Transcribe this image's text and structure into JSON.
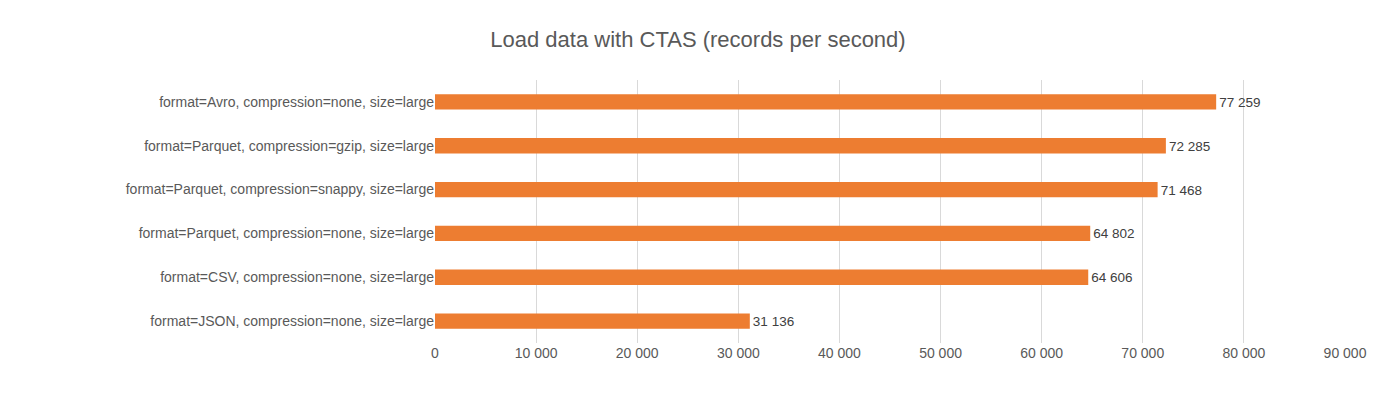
{
  "chart_data": {
    "type": "bar",
    "orientation": "horizontal",
    "title": "Load data with CTAS (records per second)",
    "categories": [
      "format=Avro, compression=none, size=large",
      "format=Parquet, compression=gzip, size=large",
      "format=Parquet, compression=snappy, size=large",
      "format=Parquet, compression=none, size=large",
      "format=CSV, compression=none, size=large",
      "format=JSON, compression=none, size=large"
    ],
    "values": [
      77259,
      72285,
      71468,
      64802,
      64606,
      31136
    ],
    "value_labels": [
      "77 259",
      "72 285",
      "71 468",
      "64 802",
      "64 606",
      "31 136"
    ],
    "data_labels": true,
    "color": "#ed7d31",
    "xlim": [
      0,
      90000
    ],
    "xticks": [
      0,
      {
        "value": 10000,
        "label": "10 000"
      },
      {
        "value": 20000,
        "label": "20 000"
      },
      {
        "value": 30000,
        "label": "30 000"
      },
      {
        "value": 40000,
        "label": "40 000"
      },
      {
        "value": 50000,
        "label": "50 000"
      },
      {
        "value": 60000,
        "label": "60 000"
      },
      {
        "value": 70000,
        "label": "70 000"
      },
      {
        "value": 80000,
        "label": "80 000"
      },
      {
        "value": 90000,
        "label": "90 000"
      }
    ],
    "grid": true
  }
}
